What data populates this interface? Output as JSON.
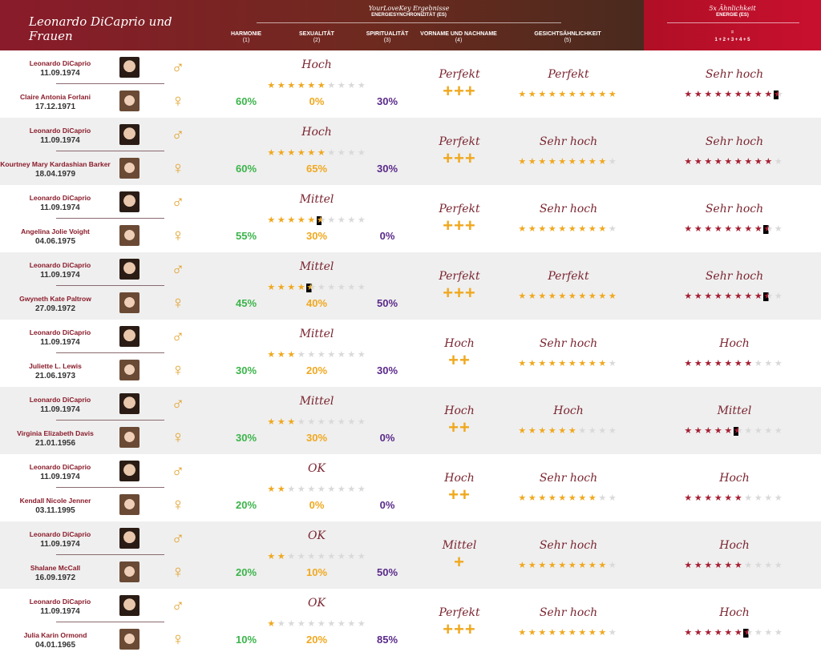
{
  "header": {
    "title": "Leonardo DiCaprio und Frauen",
    "ylk": "YourLoveKey Ergebnisse",
    "es": "ENERGIESYNCHRONIZITÄT (ES)",
    "cols": [
      {
        "name": "HARMONIE",
        "num": "(1)"
      },
      {
        "name": "SEXUALITÄT",
        "num": "(2)"
      },
      {
        "name": "SPIRITUALITÄT",
        "num": "(3)"
      },
      {
        "name": "VORNAME UND NACHNAME",
        "num": "(4)"
      },
      {
        "name": "GESICHTSÄHNLICHKEIT",
        "num": "(5)"
      }
    ],
    "energy_title": "5x Ähnlichkeit",
    "energy_sub": "ENERGIE (ES)",
    "energy_eq": "=",
    "energy_formula": "1 + 2 + 3 + 4 + 5"
  },
  "colors": {
    "gold": "#f0a81e",
    "red": "#a51e32",
    "green": "#3bb44a",
    "purple": "#5a2a8a",
    "gray": "#d9d9d9"
  },
  "icons": {
    "male": "♂",
    "female": "♀",
    "star": "★"
  },
  "rows": [
    {
      "m_name": "Leonardo DiCaprio",
      "m_date": "11.09.1974",
      "f_name": "Claire Antonia Forlani",
      "f_date": "17.12.1971",
      "level": "Hoch",
      "stars": 6,
      "h": "60%",
      "s": "0%",
      "p": "30%",
      "name_level": "Perfekt",
      "plus": "+++",
      "face_level": "Perfekt",
      "face_stars": 10,
      "energy_level": "Sehr hoch",
      "energy_stars": 9.5
    },
    {
      "m_name": "Leonardo DiCaprio",
      "m_date": "11.09.1974",
      "f_name": "Kourtney Mary Kardashian Barker",
      "f_date": "18.04.1979",
      "level": "Hoch",
      "stars": 6,
      "h": "60%",
      "s": "65%",
      "p": "30%",
      "name_level": "Perfekt",
      "plus": "+++",
      "face_level": "Sehr hoch",
      "face_stars": 9,
      "energy_level": "Sehr hoch",
      "energy_stars": 9
    },
    {
      "m_name": "Leonardo DiCaprio",
      "m_date": "11.09.1974",
      "f_name": "Angelina Jolie Voight",
      "f_date": "04.06.1975",
      "level": "Mittel",
      "stars": 5.5,
      "h": "55%",
      "s": "30%",
      "p": "0%",
      "name_level": "Perfekt",
      "plus": "+++",
      "face_level": "Sehr hoch",
      "face_stars": 9,
      "energy_level": "Sehr hoch",
      "energy_stars": 8.5
    },
    {
      "m_name": "Leonardo DiCaprio",
      "m_date": "11.09.1974",
      "f_name": "Gwyneth Kate Paltrow",
      "f_date": "27.09.1972",
      "level": "Mittel",
      "stars": 4.5,
      "h": "45%",
      "s": "40%",
      "p": "50%",
      "name_level": "Perfekt",
      "plus": "+++",
      "face_level": "Perfekt",
      "face_stars": 10,
      "energy_level": "Sehr hoch",
      "energy_stars": 8.5
    },
    {
      "m_name": "Leonardo DiCaprio",
      "m_date": "11.09.1974",
      "f_name": "Juliette L. Lewis",
      "f_date": "21.06.1973",
      "level": "Mittel",
      "stars": 3,
      "h": "30%",
      "s": "20%",
      "p": "30%",
      "name_level": "Hoch",
      "plus": "++",
      "face_level": "Sehr hoch",
      "face_stars": 9,
      "energy_level": "Hoch",
      "energy_stars": 7
    },
    {
      "m_name": "Leonardo DiCaprio",
      "m_date": "11.09.1974",
      "f_name": "Virginia Elizabeth Davis",
      "f_date": "21.01.1956",
      "level": "Mittel",
      "stars": 3,
      "h": "30%",
      "s": "30%",
      "p": "0%",
      "name_level": "Hoch",
      "plus": "++",
      "face_level": "Hoch",
      "face_stars": 6,
      "energy_level": "Mittel",
      "energy_stars": 5.5
    },
    {
      "m_name": "Leonardo DiCaprio",
      "m_date": "11.09.1974",
      "f_name": "Kendall Nicole Jenner",
      "f_date": "03.11.1995",
      "level": "OK",
      "stars": 2,
      "h": "20%",
      "s": "0%",
      "p": "0%",
      "name_level": "Hoch",
      "plus": "++",
      "face_level": "Sehr hoch",
      "face_stars": 8,
      "energy_level": "Hoch",
      "energy_stars": 6
    },
    {
      "m_name": "Leonardo DiCaprio",
      "m_date": "11.09.1974",
      "f_name": "Shalane McCall",
      "f_date": "16.09.1972",
      "level": "OK",
      "stars": 2,
      "h": "20%",
      "s": "10%",
      "p": "50%",
      "name_level": "Mittel",
      "plus": "+",
      "face_level": "Sehr hoch",
      "face_stars": 9,
      "energy_level": "Hoch",
      "energy_stars": 6
    },
    {
      "m_name": "Leonardo DiCaprio",
      "m_date": "11.09.1974",
      "f_name": "Julia Karin Ormond",
      "f_date": "04.01.1965",
      "level": "OK",
      "stars": 1,
      "h": "10%",
      "s": "20%",
      "p": "85%",
      "name_level": "Perfekt",
      "plus": "+++",
      "face_level": "Sehr hoch",
      "face_stars": 9,
      "energy_level": "Hoch",
      "energy_stars": 6.5
    }
  ]
}
